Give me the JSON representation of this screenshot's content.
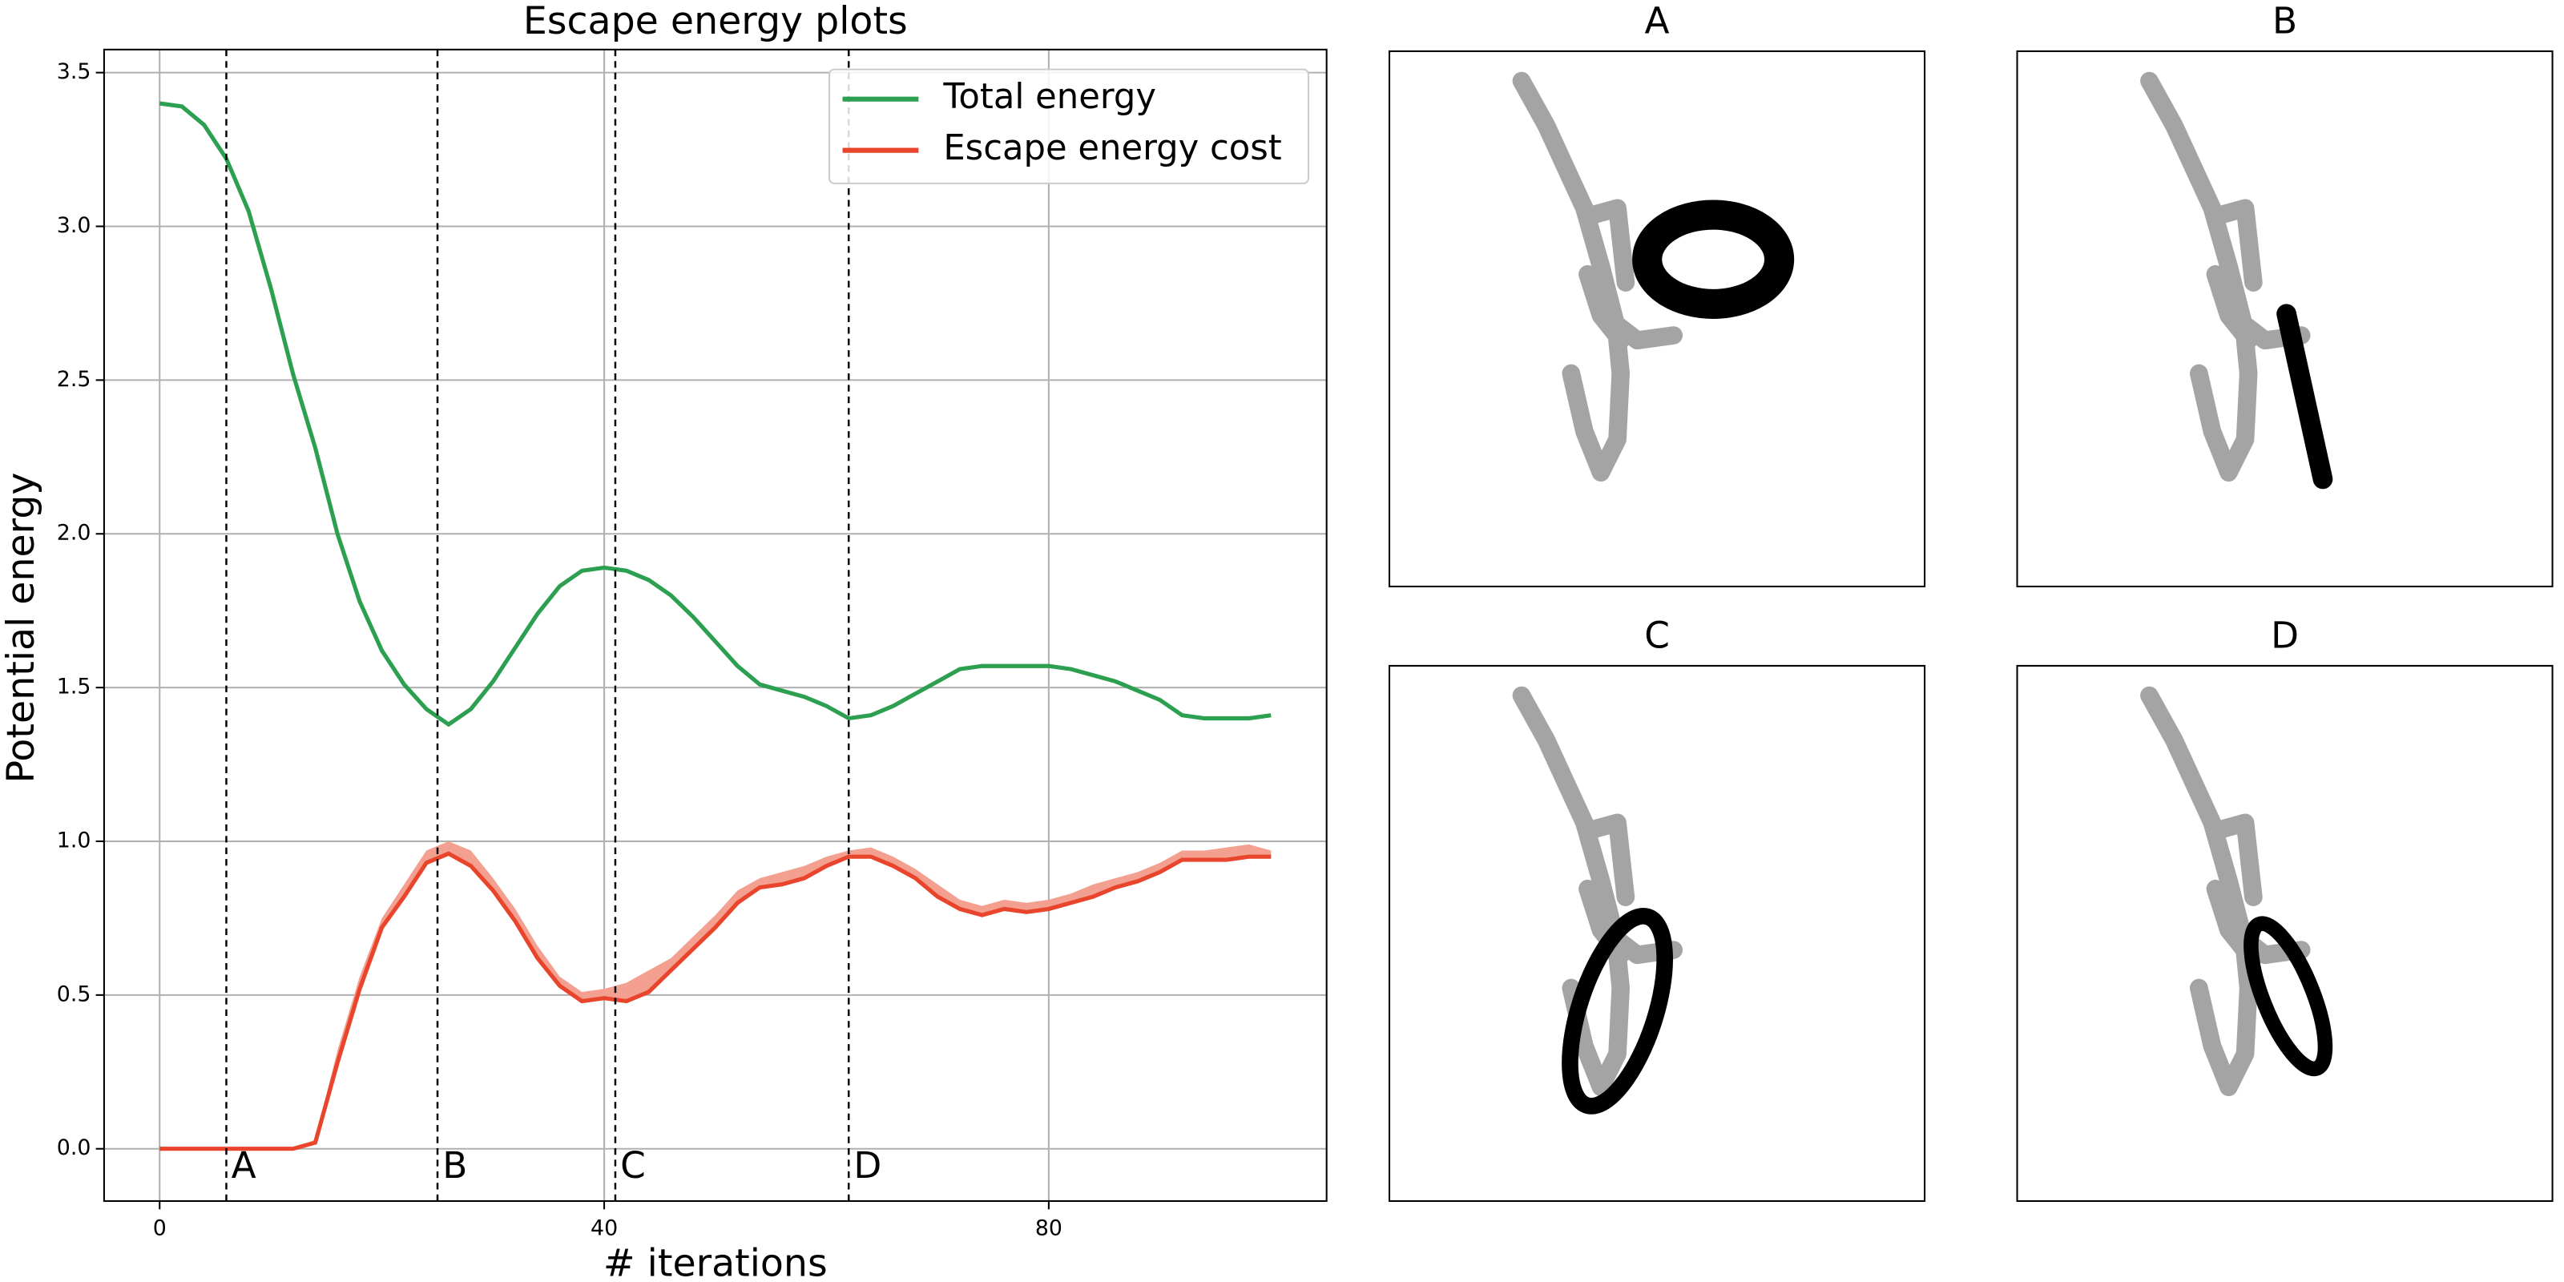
{
  "chart_data": {
    "type": "line",
    "title": "Escape energy plots",
    "xlabel": "# iterations",
    "ylabel": "Potential energy",
    "x": [
      0,
      2,
      4,
      6,
      8,
      10,
      12,
      14,
      16,
      18,
      20,
      22,
      24,
      26,
      28,
      30,
      32,
      34,
      36,
      38,
      40,
      42,
      44,
      46,
      48,
      50,
      52,
      54,
      56,
      58,
      60,
      62,
      64,
      66,
      68,
      70,
      72,
      74,
      76,
      78,
      80,
      82,
      84,
      86,
      88,
      90,
      92,
      94,
      96,
      98,
      100
    ],
    "series": [
      {
        "name": "Total energy",
        "color": "#2ca050",
        "values": [
          3.4,
          3.39,
          3.33,
          3.22,
          3.05,
          2.8,
          2.52,
          2.28,
          2.0,
          1.78,
          1.62,
          1.51,
          1.43,
          1.38,
          1.43,
          1.52,
          1.63,
          1.74,
          1.83,
          1.88,
          1.89,
          1.88,
          1.85,
          1.8,
          1.73,
          1.65,
          1.57,
          1.51,
          1.49,
          1.47,
          1.44,
          1.4,
          1.41,
          1.44,
          1.48,
          1.52,
          1.56,
          1.57,
          1.57,
          1.57,
          1.57,
          1.56,
          1.54,
          1.52,
          1.49,
          1.46,
          1.41,
          1.4,
          1.4,
          1.4,
          1.41
        ]
      },
      {
        "name": "Escape energy cost",
        "color": "#e8452c",
        "band_color": "#f4a090",
        "values": [
          0,
          0,
          0,
          0,
          0,
          0,
          0,
          0.02,
          0.28,
          0.52,
          0.72,
          0.82,
          0.93,
          0.96,
          0.92,
          0.84,
          0.74,
          0.62,
          0.53,
          0.48,
          0.49,
          0.48,
          0.51,
          0.58,
          0.65,
          0.72,
          0.8,
          0.85,
          0.86,
          0.88,
          0.92,
          0.95,
          0.95,
          0.92,
          0.88,
          0.82,
          0.78,
          0.76,
          0.78,
          0.77,
          0.78,
          0.8,
          0.82,
          0.85,
          0.87,
          0.9,
          0.94,
          0.94,
          0.94,
          0.95,
          0.95
        ],
        "upper": [
          0,
          0,
          0,
          0,
          0,
          0,
          0,
          0.03,
          0.32,
          0.56,
          0.75,
          0.86,
          0.97,
          1.0,
          0.97,
          0.88,
          0.78,
          0.66,
          0.56,
          0.51,
          0.52,
          0.54,
          0.58,
          0.62,
          0.69,
          0.76,
          0.84,
          0.88,
          0.9,
          0.92,
          0.95,
          0.97,
          0.98,
          0.95,
          0.91,
          0.86,
          0.81,
          0.79,
          0.81,
          0.8,
          0.81,
          0.83,
          0.86,
          0.88,
          0.9,
          0.93,
          0.97,
          0.97,
          0.98,
          0.99,
          0.97
        ]
      }
    ],
    "vlines": [
      {
        "x": 6,
        "label": "A"
      },
      {
        "x": 25,
        "label": "B"
      },
      {
        "x": 41,
        "label": "C"
      },
      {
        "x": 62,
        "label": "D"
      }
    ],
    "xlim": [
      -5,
      105
    ],
    "ylim": [
      -0.17,
      3.575
    ],
    "xticks": [
      0,
      40,
      80
    ],
    "yticks": [
      {
        "value": 0,
        "label": "0.0"
      },
      0.5,
      {
        "value": 1,
        "label": "1.0"
      },
      1.5,
      {
        "value": 2,
        "label": "2.0"
      },
      2.5,
      {
        "value": 3,
        "label": "3.0"
      },
      3.5
    ],
    "grid": true,
    "legend": "upper right"
  },
  "panels": [
    {
      "title": "A"
    },
    {
      "title": "B"
    },
    {
      "title": "C"
    },
    {
      "title": "D"
    }
  ]
}
